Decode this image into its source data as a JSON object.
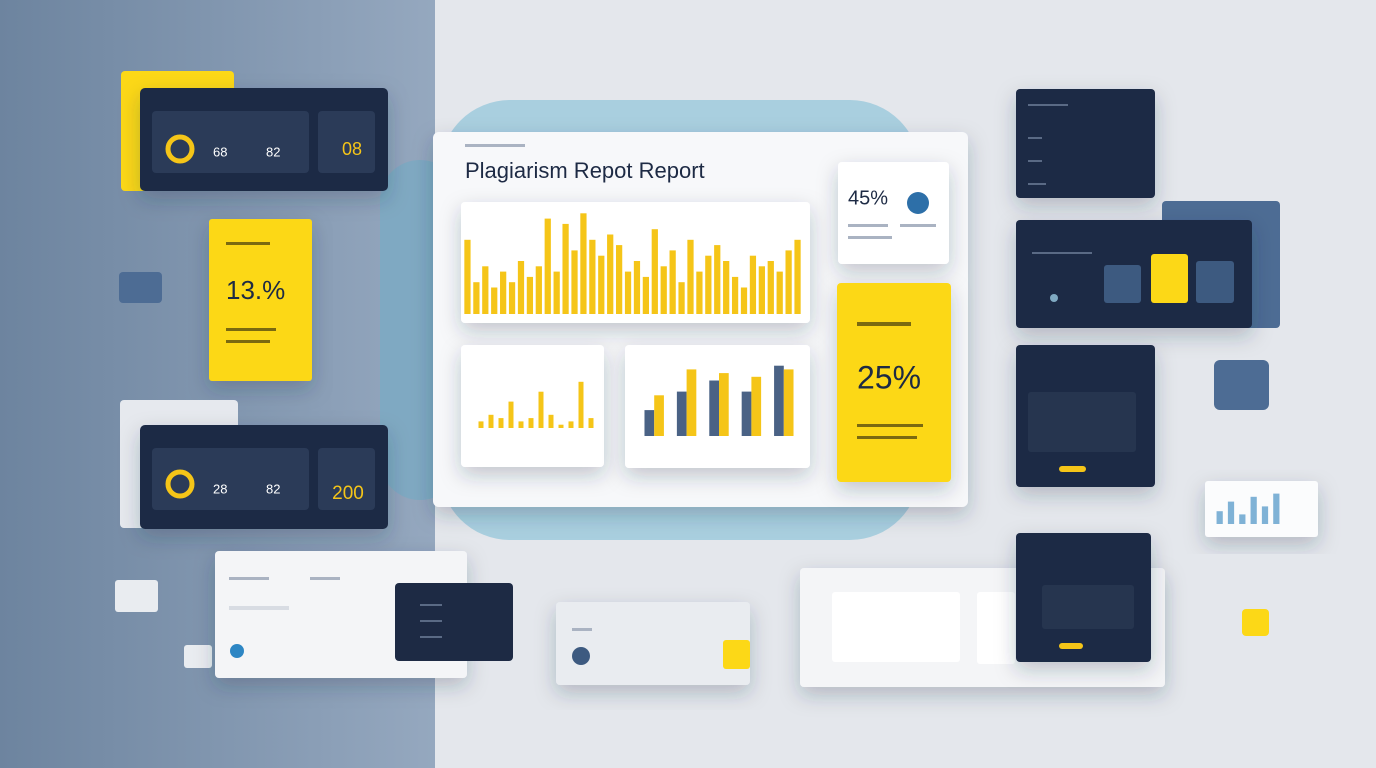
{
  "main_card": {
    "title": "Plagiarism Repot Report"
  },
  "main_chart": {
    "ylim": [
      0,
      100
    ],
    "color": "#f5c518",
    "values": [
      70,
      30,
      45,
      25,
      40,
      30,
      50,
      35,
      45,
      90,
      40,
      85,
      60,
      95,
      70,
      55,
      75,
      65,
      40,
      50,
      35,
      80,
      45,
      60,
      30,
      70,
      40,
      55,
      65,
      50,
      35,
      25,
      55,
      45,
      50,
      40,
      60,
      70
    ]
  },
  "small_chart": {
    "ylim": [
      0,
      100
    ],
    "color": "#f5c518",
    "values": [
      10,
      20,
      15,
      40,
      10,
      15,
      55,
      20,
      5,
      10,
      70,
      15
    ]
  },
  "group_chart": {
    "ylim": [
      0,
      100
    ],
    "series": [
      {
        "color": "#4a6285",
        "values": [
          35,
          60,
          75,
          60,
          95
        ]
      },
      {
        "color": "#f5c518",
        "values": [
          55,
          90,
          85,
          80,
          90
        ]
      }
    ]
  },
  "mini_chart": {
    "ylim": [
      0,
      100
    ],
    "color": "#7fb2d6",
    "values": [
      40,
      70,
      30,
      85,
      55,
      95
    ]
  },
  "stat_45": {
    "value": "45%"
  },
  "stat_25": {
    "value": "25%"
  },
  "stat_13": {
    "value": "13.%"
  },
  "top_card": {
    "num_a": "68",
    "num_b": "82",
    "num_c": "08"
  },
  "bottom_card": {
    "num_a": "28",
    "num_b": "82",
    "num_c": "200"
  }
}
